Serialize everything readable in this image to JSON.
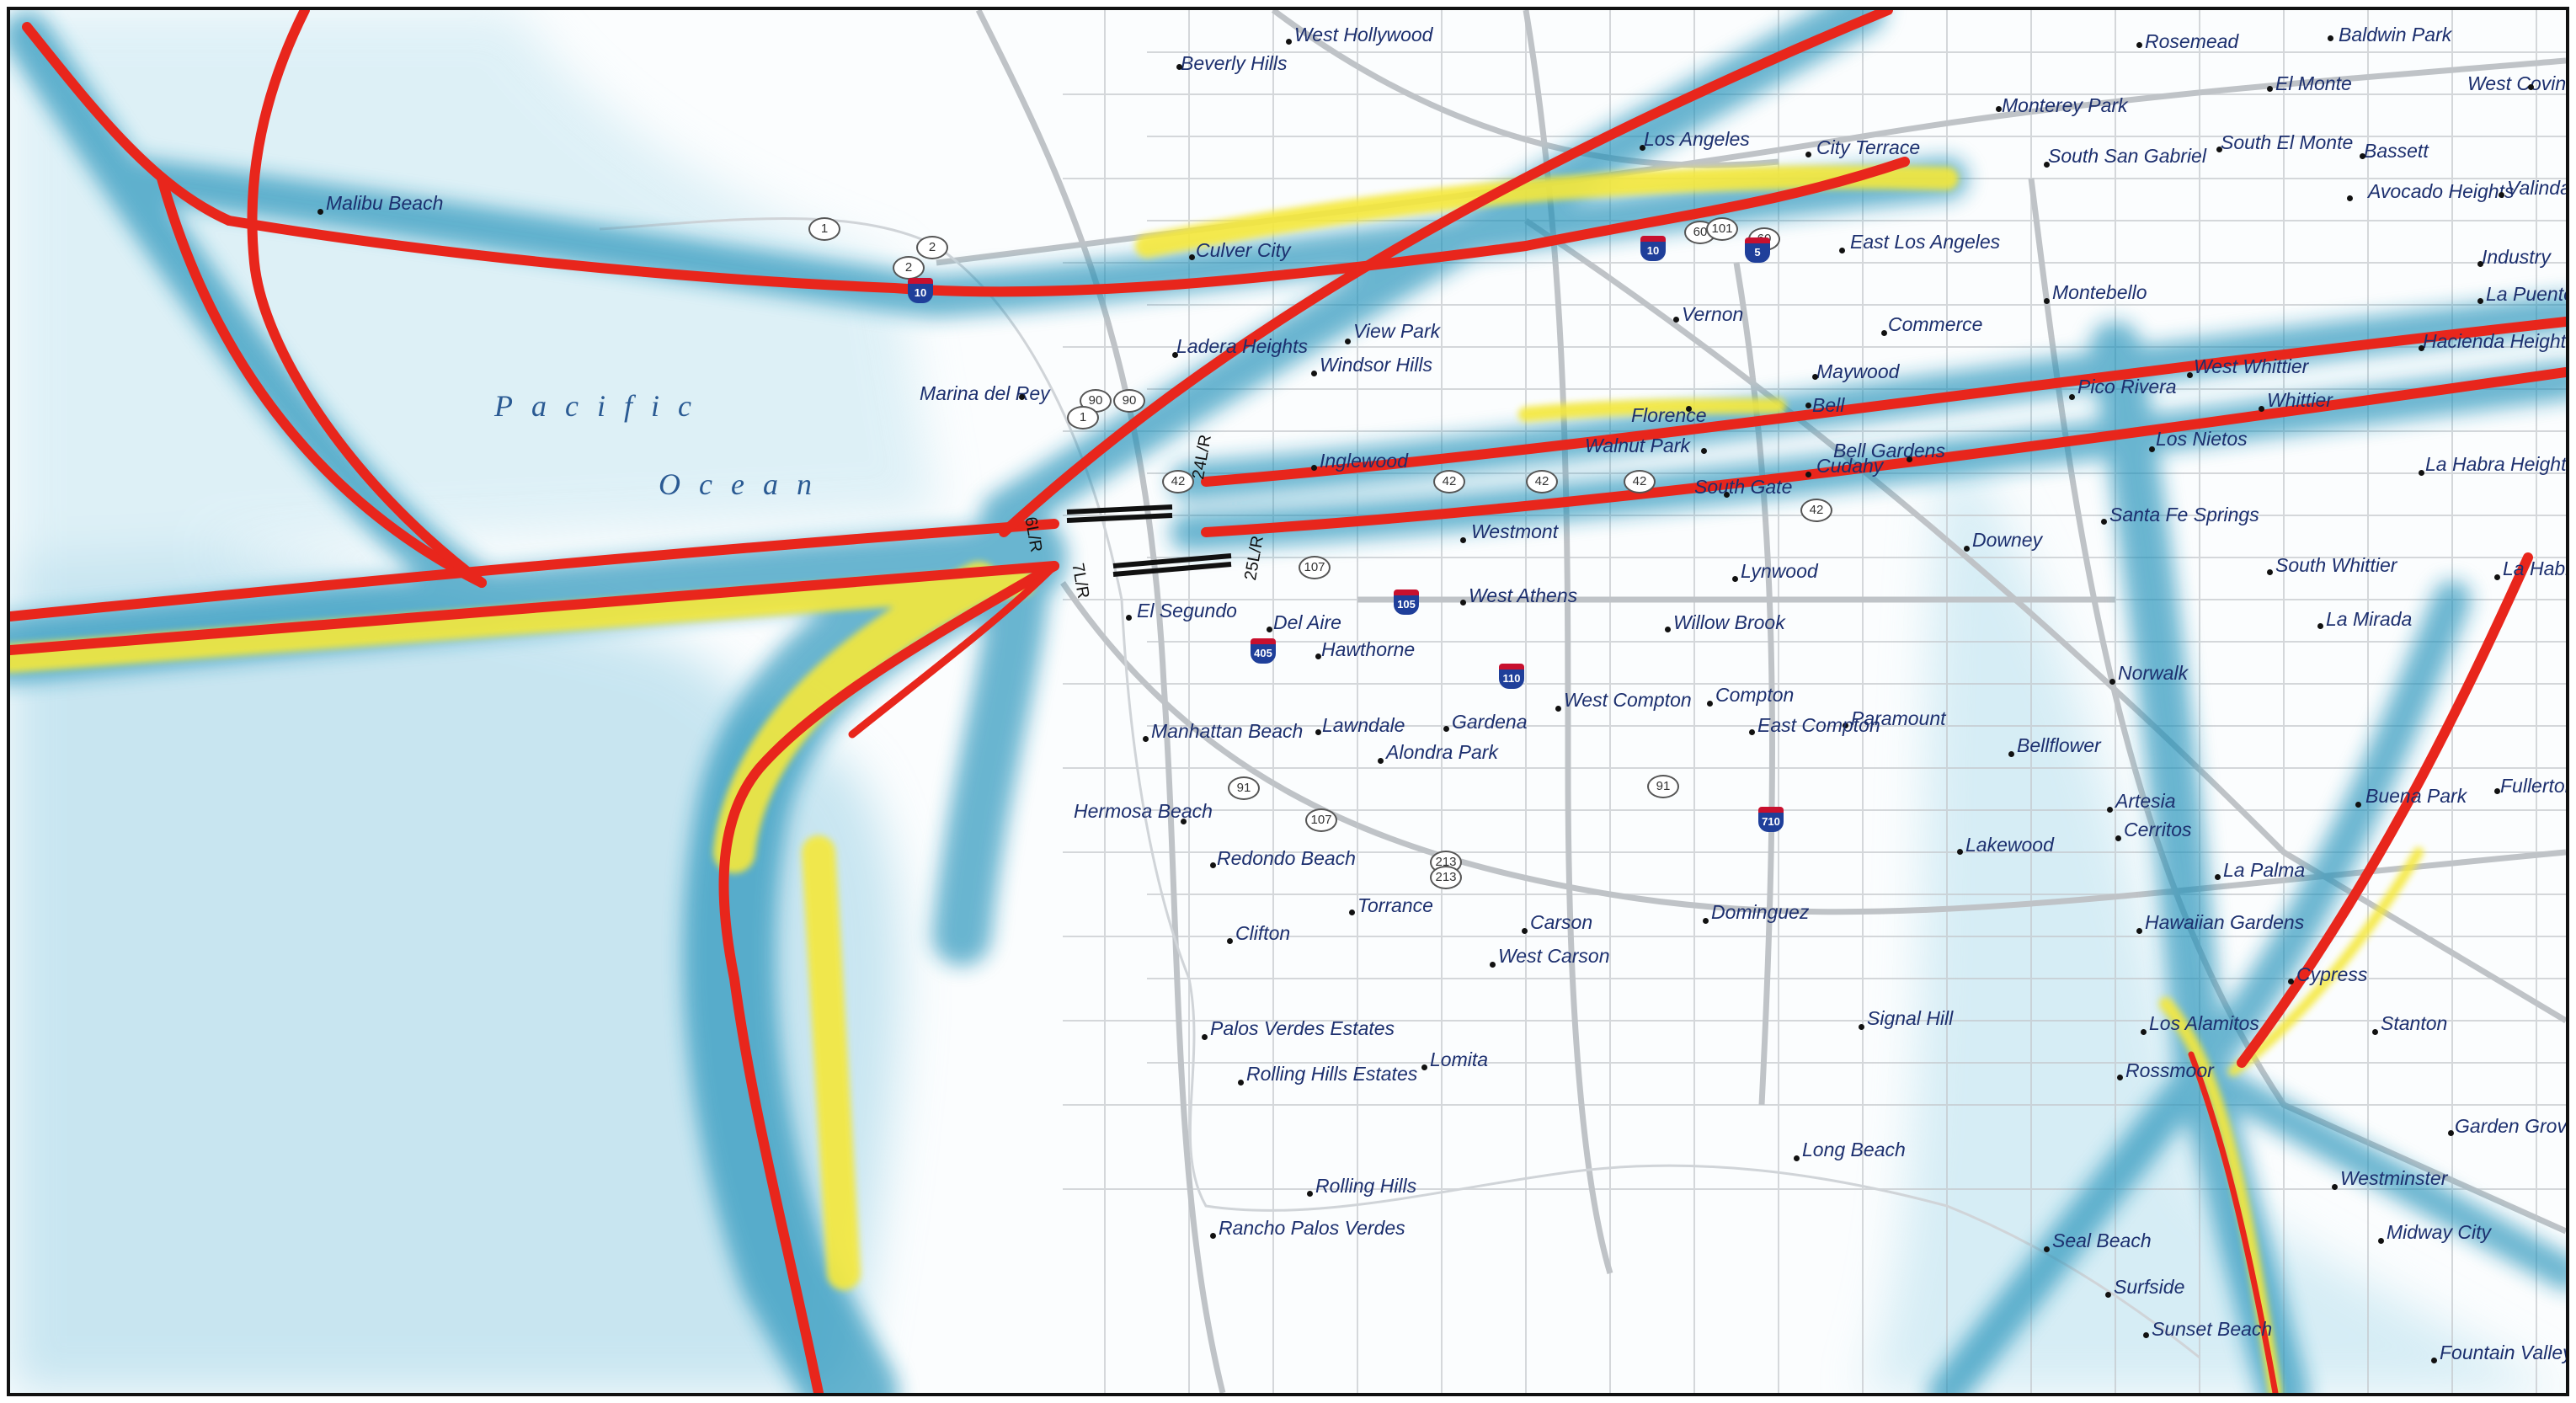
{
  "map": {
    "ocean_label_line1": "Pacific",
    "ocean_label_line2": "Ocean",
    "colors": {
      "ocean_density": "#1b8fb8",
      "track_high": "#e8261c",
      "track_mid": "#f5e83a",
      "roads": "#c4c8cc",
      "label_text": "#1c2f6e"
    },
    "cities": [
      {
        "name": "West Hollywood"
      },
      {
        "name": "Beverly Hills"
      },
      {
        "name": "Rosemead"
      },
      {
        "name": "Baldwin Park"
      },
      {
        "name": "El Monte"
      },
      {
        "name": "West Covina"
      },
      {
        "name": "Monterey Park"
      },
      {
        "name": "Malibu Beach"
      },
      {
        "name": "Los Angeles"
      },
      {
        "name": "City Terrace"
      },
      {
        "name": "South San Gabriel"
      },
      {
        "name": "South El Monte"
      },
      {
        "name": "Bassett"
      },
      {
        "name": "Avocado Heights"
      },
      {
        "name": "Valinda"
      },
      {
        "name": "Culver City"
      },
      {
        "name": "East Los Angeles"
      },
      {
        "name": "Industry"
      },
      {
        "name": "La Puente"
      },
      {
        "name": "Vernon"
      },
      {
        "name": "Montebello"
      },
      {
        "name": "Commerce"
      },
      {
        "name": "View Park"
      },
      {
        "name": "Ladera Heights"
      },
      {
        "name": "Hacienda Heights"
      },
      {
        "name": "Windsor Hills"
      },
      {
        "name": "Maywood"
      },
      {
        "name": "West Whittier"
      },
      {
        "name": "Marina del Rey"
      },
      {
        "name": "Pico Rivera"
      },
      {
        "name": "Whittier"
      },
      {
        "name": "Florence"
      },
      {
        "name": "Bell"
      },
      {
        "name": "Walnut Park"
      },
      {
        "name": "Bell Gardens"
      },
      {
        "name": "Los Nietos"
      },
      {
        "name": "Inglewood"
      },
      {
        "name": "Cudahy"
      },
      {
        "name": "La Habra Heights"
      },
      {
        "name": "South Gate"
      },
      {
        "name": "Santa Fe Springs"
      },
      {
        "name": "Westmont"
      },
      {
        "name": "Downey"
      },
      {
        "name": "South Whittier"
      },
      {
        "name": "La Habra"
      },
      {
        "name": "Lynwood"
      },
      {
        "name": "West Athens"
      },
      {
        "name": "El Segundo"
      },
      {
        "name": "Del Aire"
      },
      {
        "name": "Willow Brook"
      },
      {
        "name": "La Mirada"
      },
      {
        "name": "Hawthorne"
      },
      {
        "name": "Norwalk"
      },
      {
        "name": "West Compton"
      },
      {
        "name": "Compton"
      },
      {
        "name": "Paramount"
      },
      {
        "name": "Manhattan Beach"
      },
      {
        "name": "Lawndale"
      },
      {
        "name": "Gardena"
      },
      {
        "name": "East Compton"
      },
      {
        "name": "Bellflower"
      },
      {
        "name": "Alondra Park"
      },
      {
        "name": "Fullerton"
      },
      {
        "name": "Artesia"
      },
      {
        "name": "Buena Park"
      },
      {
        "name": "Hermosa Beach"
      },
      {
        "name": "Cerritos"
      },
      {
        "name": "Redondo Beach"
      },
      {
        "name": "Lakewood"
      },
      {
        "name": "La Palma"
      },
      {
        "name": "Torrance"
      },
      {
        "name": "Dominguez"
      },
      {
        "name": "Carson"
      },
      {
        "name": "Hawaiian Gardens"
      },
      {
        "name": "Clifton"
      },
      {
        "name": "West Carson"
      },
      {
        "name": "Cypress"
      },
      {
        "name": "Signal Hill"
      },
      {
        "name": "Palos Verdes Estates"
      },
      {
        "name": "Los Alamitos"
      },
      {
        "name": "Stanton"
      },
      {
        "name": "Lomita"
      },
      {
        "name": "Rolling Hills Estates"
      },
      {
        "name": "Rossmoor"
      },
      {
        "name": "Garden Grove"
      },
      {
        "name": "Long Beach"
      },
      {
        "name": "Westminster"
      },
      {
        "name": "Rolling Hills"
      },
      {
        "name": "Rancho Palos Verdes"
      },
      {
        "name": "Midway City"
      },
      {
        "name": "Seal Beach"
      },
      {
        "name": "Surfside"
      },
      {
        "name": "Sunset Beach"
      },
      {
        "name": "Fountain Valley"
      }
    ],
    "route_shields": [
      {
        "num": "1"
      },
      {
        "num": "2"
      },
      {
        "num": "2"
      },
      {
        "num": "90"
      },
      {
        "num": "90"
      },
      {
        "num": "1"
      },
      {
        "num": "42"
      },
      {
        "num": "42"
      },
      {
        "num": "42"
      },
      {
        "num": "42"
      },
      {
        "num": "42"
      },
      {
        "num": "107"
      },
      {
        "num": "91"
      },
      {
        "num": "107"
      },
      {
        "num": "213"
      },
      {
        "num": "213"
      },
      {
        "num": "91"
      },
      {
        "num": "60"
      },
      {
        "num": "101"
      },
      {
        "num": "60"
      }
    ],
    "interstate_shields": [
      {
        "num": "10"
      },
      {
        "num": "10"
      },
      {
        "num": "5"
      },
      {
        "num": "105"
      },
      {
        "num": "405"
      },
      {
        "num": "110"
      },
      {
        "num": "710"
      }
    ],
    "runways": [
      {
        "label": "6L/R"
      },
      {
        "label": "24L/R"
      },
      {
        "label": "7L/R"
      },
      {
        "label": "25L/R"
      }
    ]
  }
}
